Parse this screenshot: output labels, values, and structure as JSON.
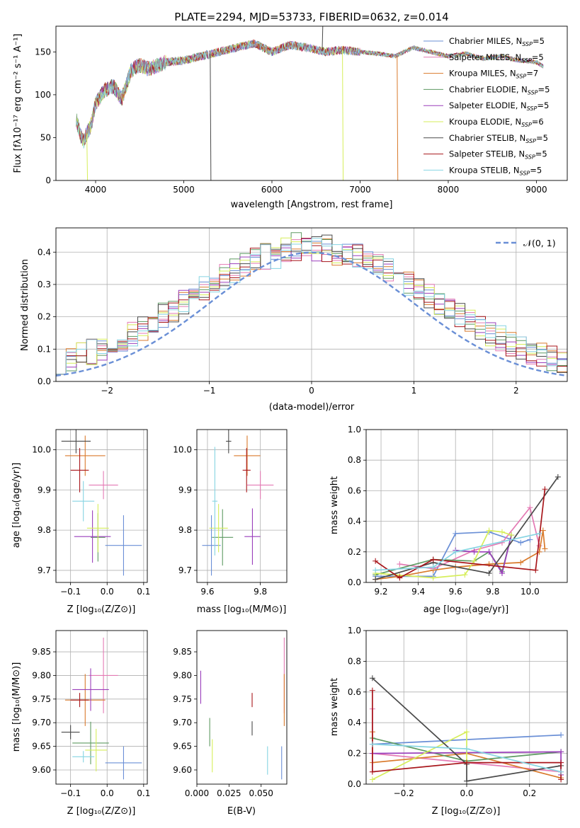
{
  "colors": {
    "chabrier_miles": "#6A8FD6",
    "salpeter_miles": "#E47AB4",
    "kroupa_miles": "#D97A2C",
    "chabrier_elodie": "#5E9A62",
    "salpeter_elodie": "#9A3EBB",
    "kroupa_elodie": "#D6EE5A",
    "chabrier_stelib": "#4A4A4A",
    "salpeter_stelib": "#A8161B",
    "kroupa_stelib": "#86D4E2"
  },
  "chart_data": [
    {
      "id": "spectrum",
      "type": "line",
      "title": "PLATE=2294, MJD=53733, FIBERID=0632, z=0.014",
      "xlabel": "wavelength [Angstrom, rest frame]",
      "ylabel": "Flux [fλ10⁻¹⁷ erg cm⁻² s⁻¹ A⁻¹]",
      "xlim": [
        3550,
        9350
      ],
      "ylim": [
        0,
        180
      ],
      "xticks": [
        "4000",
        "5000",
        "6000",
        "7000",
        "8000",
        "9000"
      ],
      "yticks": [
        "0",
        "50",
        "100",
        "150"
      ],
      "legend": {
        "position": "top-right",
        "entries": [
          "Chabrier MILES, N_SSP=5",
          "Salpeter MILES, N_SSP=5",
          "Kroupa MILES, N_SSP=7",
          "Chabrier ELODIE, N_SSP=5",
          "Salpeter ELODIE, N_SSP=5",
          "Kroupa ELODIE, N_SSP=6",
          "Chabrier STELIB, N_SSP=5",
          "Salpeter STELIB, N_SSP=5",
          "Kroupa STELIB, N_SSP=5"
        ]
      },
      "series": [
        {
          "name": "Kroupa STELIB",
          "color_key": "kroupa_stelib",
          "x": [
            3780,
            3820,
            3860,
            3900,
            3950,
            4000,
            4100,
            4200,
            4300,
            4400,
            4500,
            4600,
            4800,
            5000,
            5200,
            5400,
            5600,
            5800,
            6000,
            6200,
            6400,
            6600,
            6800,
            7000,
            7200,
            7400,
            7600,
            7800,
            8000,
            8200,
            8400,
            8600,
            8800,
            9000,
            9080
          ],
          "y": [
            72,
            55,
            45,
            55,
            65,
            90,
            105,
            110,
            95,
            128,
            135,
            130,
            138,
            140,
            145,
            150,
            155,
            160,
            150,
            158,
            155,
            150,
            152,
            150,
            148,
            145,
            155,
            150,
            145,
            148,
            142,
            145,
            140,
            138,
            133
          ]
        }
      ],
      "drops": [
        {
          "name": "Chabrier STELIB",
          "color_key": "chabrier_stelib",
          "x": 5300,
          "y": 0
        },
        {
          "name": "Kroupa ELODIE",
          "color_key": "kroupa_elodie",
          "x": 6800,
          "y": 0
        },
        {
          "name": "Kroupa MILES",
          "color_key": "kroupa_miles",
          "x": 7420,
          "y": 0
        },
        {
          "name": "Kroupa ELODIE",
          "color_key": "kroupa_elodie",
          "x": 3900,
          "y": 0
        },
        {
          "name": "Chabrier STELIB",
          "color_key": "chabrier_stelib",
          "x": 6570,
          "y": 185
        }
      ]
    },
    {
      "id": "residuals",
      "type": "line",
      "xlabel": "(data-model)/error",
      "ylabel": "Normed distribution",
      "xlim": [
        -2.5,
        2.5
      ],
      "ylim": [
        0,
        0.475
      ],
      "xticks": [
        "−2",
        "−1",
        "0",
        "1",
        "2"
      ],
      "yticks": [
        "0.0",
        "0.1",
        "0.2",
        "0.3",
        "0.4"
      ],
      "grid": true,
      "legend": {
        "position": "top-right",
        "entries": [
          "𝒩(0, 1)"
        ]
      },
      "reference_curve": {
        "name": "𝒩(0, 1)",
        "mean": 0,
        "sigma": 1,
        "style": "dashed"
      }
    },
    {
      "id": "age_vs_Z",
      "type": "scatter",
      "xlabel": "Z [log₁₀(Z/Z⊙)]",
      "ylabel": "age  [log₁₀(age/yr)]",
      "xlim": [
        -0.14,
        0.11
      ],
      "ylim": [
        9.67,
        10.05
      ],
      "xticks": [
        "−0.1",
        "0.0",
        "0.1"
      ],
      "yticks": [
        "9.7",
        "9.8",
        "9.9",
        "10.0"
      ],
      "grid": true,
      "points": [
        {
          "color_key": "chabrier_miles",
          "x": 0.045,
          "xerr": 0.05,
          "y": 9.762,
          "yerr": 0.075
        },
        {
          "color_key": "salpeter_miles",
          "x": -0.01,
          "xerr": 0.04,
          "y": 9.912,
          "yerr": 0.035
        },
        {
          "color_key": "kroupa_miles",
          "x": -0.06,
          "xerr": 0.055,
          "y": 9.985,
          "yerr": 0.05
        },
        {
          "color_key": "chabrier_elodie",
          "x": -0.025,
          "xerr": 0.02,
          "y": 9.782,
          "yerr": 0.06
        },
        {
          "color_key": "salpeter_elodie",
          "x": -0.04,
          "xerr": 0.05,
          "y": 9.784,
          "yerr": 0.065
        },
        {
          "color_key": "kroupa_elodie",
          "x": -0.025,
          "xerr": 0.03,
          "y": 9.805,
          "yerr": 0.06
        },
        {
          "color_key": "chabrier_stelib",
          "x": -0.085,
          "xerr": 0.04,
          "y": 10.021,
          "yerr": 0.03
        },
        {
          "color_key": "salpeter_stelib",
          "x": -0.075,
          "xerr": 0.025,
          "y": 9.949,
          "yerr": 0.055
        },
        {
          "color_key": "kroupa_stelib",
          "x": -0.065,
          "xerr": 0.03,
          "y": 9.872,
          "yerr": 0.05
        }
      ]
    },
    {
      "id": "age_vs_mass",
      "type": "scatter",
      "xlabel": "mass [log₁₀(M/M⊙)]",
      "xlim": [
        9.56,
        9.9
      ],
      "ylim": [
        9.67,
        10.05
      ],
      "xticks": [
        "9.6",
        "9.8"
      ],
      "yticks": [
        "9.7",
        "9.8",
        "9.9",
        "10.0"
      ],
      "grid": true,
      "points": [
        {
          "color_key": "chabrier_miles",
          "x": 9.615,
          "xerr": 0.035,
          "y": 9.762,
          "yerr": 0.075
        },
        {
          "color_key": "salpeter_miles",
          "x": 9.8,
          "xerr": 0.05,
          "y": 9.912,
          "yerr": 0.035
        },
        {
          "color_key": "kroupa_miles",
          "x": 9.75,
          "xerr": 0.05,
          "y": 9.985,
          "yerr": 0.05
        },
        {
          "color_key": "chabrier_elodie",
          "x": 9.657,
          "xerr": 0.04,
          "y": 9.782,
          "yerr": 0.07
        },
        {
          "color_key": "salpeter_elodie",
          "x": 9.77,
          "xerr": 0.03,
          "y": 9.784,
          "yerr": 0.07
        },
        {
          "color_key": "kroupa_elodie",
          "x": 9.642,
          "xerr": 0.035,
          "y": 9.805,
          "yerr": 0.06
        },
        {
          "color_key": "chabrier_stelib",
          "x": 9.68,
          "xerr": 0.01,
          "y": 10.021,
          "yerr": 0.03
        },
        {
          "color_key": "salpeter_stelib",
          "x": 9.748,
          "xerr": 0.015,
          "y": 9.949,
          "yerr": 0.055
        },
        {
          "color_key": "kroupa_stelib",
          "x": 9.628,
          "xerr": 0.01,
          "y": 9.872,
          "yerr": 0.135
        }
      ]
    },
    {
      "id": "mass_weight_vs_age",
      "type": "line",
      "xlabel": "age  [log₁₀(age/yr)]",
      "ylabel": "mass weight",
      "xlim": [
        9.12,
        10.2
      ],
      "ylim": [
        0,
        1.0
      ],
      "xticks": [
        "9.2",
        "9.4",
        "9.6",
        "9.8",
        "10.0"
      ],
      "yticks": [
        "0.0",
        "0.2",
        "0.4",
        "0.6",
        "0.8",
        "1.0"
      ],
      "grid": true,
      "series": [
        {
          "color_key": "chabrier_miles",
          "x": [
            9.17,
            9.48,
            9.6,
            9.78,
            9.95,
            10.0
          ],
          "y": [
            0.04,
            0.04,
            0.32,
            0.33,
            0.26,
            0.28
          ]
        },
        {
          "color_key": "salpeter_miles",
          "x": [
            9.3,
            9.48,
            9.7,
            9.85,
            10.0,
            10.05
          ],
          "y": [
            0.12,
            0.09,
            0.21,
            0.26,
            0.49,
            0.24
          ]
        },
        {
          "color_key": "kroupa_miles",
          "x": [
            9.17,
            9.3,
            9.48,
            9.6,
            9.78,
            9.95,
            10.05,
            10.07,
            10.08
          ],
          "y": [
            0.02,
            0.04,
            0.08,
            0.1,
            0.12,
            0.13,
            0.2,
            0.34,
            0.22
          ]
        },
        {
          "color_key": "chabrier_elodie",
          "x": [
            9.17,
            9.48,
            9.7,
            9.78,
            9.85,
            9.9
          ],
          "y": [
            0.05,
            0.15,
            0.14,
            0.2,
            0.07,
            0.31
          ]
        },
        {
          "color_key": "salpeter_elodie",
          "x": [
            9.6,
            9.7,
            9.78,
            9.85,
            9.9
          ],
          "y": [
            0.21,
            0.2,
            0.2,
            0.06,
            0.31
          ]
        },
        {
          "color_key": "kroupa_elodie",
          "x": [
            9.17,
            9.48,
            9.65,
            9.7,
            9.78,
            9.85,
            9.9
          ],
          "y": [
            0.06,
            0.03,
            0.05,
            0.14,
            0.34,
            0.33,
            0.31
          ]
        },
        {
          "color_key": "chabrier_stelib",
          "x": [
            9.17,
            9.48,
            9.78,
            10.15
          ],
          "y": [
            0.02,
            0.13,
            0.06,
            0.69
          ]
        },
        {
          "color_key": "salpeter_stelib",
          "x": [
            9.17,
            9.3,
            9.48,
            10.03,
            10.08
          ],
          "y": [
            0.14,
            0.03,
            0.15,
            0.08,
            0.61
          ]
        },
        {
          "color_key": "kroupa_stelib",
          "x": [
            9.17,
            9.48,
            9.6,
            10.05
          ],
          "y": [
            0.08,
            0.1,
            0.2,
            0.32
          ]
        }
      ]
    },
    {
      "id": "mass_vs_Z",
      "type": "scatter",
      "xlabel": "Z [log₁₀(Z/Z⊙)]",
      "ylabel": "mass [log₁₀(M/M⊙)]",
      "xlim": [
        -0.14,
        0.11
      ],
      "ylim": [
        9.57,
        9.895
      ],
      "xticks": [
        "−0.1",
        "0.0",
        "0.1"
      ],
      "yticks": [
        "9.60",
        "9.65",
        "9.70",
        "9.75",
        "9.80",
        "9.85"
      ],
      "grid": true,
      "points": [
        {
          "color_key": "chabrier_miles",
          "x": 0.045,
          "xerr": 0.05,
          "y": 9.615,
          "yerr": 0.035
        },
        {
          "color_key": "salpeter_miles",
          "x": -0.01,
          "xerr": 0.04,
          "y": 9.8,
          "yerr": 0.08
        },
        {
          "color_key": "kroupa_miles",
          "x": -0.06,
          "xerr": 0.055,
          "y": 9.748,
          "yerr": 0.055
        },
        {
          "color_key": "chabrier_elodie",
          "x": -0.045,
          "xerr": 0.05,
          "y": 9.657,
          "yerr": 0.045
        },
        {
          "color_key": "salpeter_elodie",
          "x": -0.045,
          "xerr": 0.05,
          "y": 9.77,
          "yerr": 0.045
        },
        {
          "color_key": "kroupa_elodie",
          "x": -0.03,
          "xerr": 0.03,
          "y": 9.642,
          "yerr": 0.045
        },
        {
          "color_key": "chabrier_stelib",
          "x": -0.1,
          "xerr": 0.025,
          "y": 9.68,
          "yerr": 0.015
        },
        {
          "color_key": "salpeter_stelib",
          "x": -0.075,
          "xerr": 0.025,
          "y": 9.748,
          "yerr": 0.015
        },
        {
          "color_key": "kroupa_stelib",
          "x": -0.065,
          "xerr": 0.03,
          "y": 9.628,
          "yerr": 0.012
        }
      ]
    },
    {
      "id": "mass_vs_EBV",
      "type": "scatter",
      "xlabel": "E(B-V)",
      "xlim": [
        0.0,
        0.07
      ],
      "ylim": [
        9.57,
        9.895
      ],
      "xticks": [
        "0.000",
        "0.025",
        "0.050"
      ],
      "yticks": [
        "9.60",
        "9.65",
        "9.70",
        "9.75",
        "9.80",
        "9.85"
      ],
      "grid": false,
      "points": [
        {
          "color_key": "chabrier_miles",
          "x": 0.066,
          "xerr": 0,
          "y": 9.615,
          "yerr": 0.035
        },
        {
          "color_key": "salpeter_miles",
          "x": 0.068,
          "xerr": 0,
          "y": 9.8,
          "yerr": 0.08
        },
        {
          "color_key": "kroupa_miles",
          "x": 0.068,
          "xerr": 0,
          "y": 9.748,
          "yerr": 0.055
        },
        {
          "color_key": "chabrier_elodie",
          "x": 0.01,
          "xerr": 0,
          "y": 9.68,
          "yerr": 0.03
        },
        {
          "color_key": "salpeter_elodie",
          "x": 0.003,
          "xerr": 0,
          "y": 9.775,
          "yerr": 0.035
        },
        {
          "color_key": "kroupa_elodie",
          "x": 0.012,
          "xerr": 0,
          "y": 9.63,
          "yerr": 0.035
        },
        {
          "color_key": "chabrier_stelib",
          "x": 0.043,
          "xerr": 0,
          "y": 9.688,
          "yerr": 0.015
        },
        {
          "color_key": "salpeter_stelib",
          "x": 0.043,
          "xerr": 0,
          "y": 9.748,
          "yerr": 0.015
        },
        {
          "color_key": "kroupa_stelib",
          "x": 0.055,
          "xerr": 0,
          "y": 9.62,
          "yerr": 0.03
        }
      ]
    },
    {
      "id": "mass_weight_vs_Z",
      "type": "line",
      "xlabel": "Z [log₁₀(Z/Z⊙)]",
      "ylabel": "mass weight",
      "xlim": [
        -0.32,
        0.32
      ],
      "ylim": [
        0,
        1.0
      ],
      "xticks": [
        "−0.2",
        "0.0",
        "0.2"
      ],
      "yticks": [
        "0.0",
        "0.2",
        "0.4",
        "0.6",
        "0.8",
        "1.0"
      ],
      "grid": true,
      "series": [
        {
          "color_key": "chabrier_miles",
          "x": [
            -0.3,
            0.3
          ],
          "y": [
            0.26,
            0.32
          ]
        },
        {
          "color_key": "salpeter_miles",
          "x": [
            -0.3,
            -0.3,
            0.3,
            0.3
          ],
          "y": [
            0.49,
            0.2,
            0.08,
            0.14
          ]
        },
        {
          "color_key": "kroupa_miles",
          "x": [
            -0.3,
            -0.3,
            0.0,
            0.3
          ],
          "y": [
            0.34,
            0.14,
            0.2,
            0.04
          ]
        },
        {
          "color_key": "chabrier_elodie",
          "x": [
            -0.3,
            0.0,
            0.3
          ],
          "y": [
            0.3,
            0.15,
            0.21
          ]
        },
        {
          "color_key": "salpeter_elodie",
          "x": [
            -0.3,
            0.3,
            0.3
          ],
          "y": [
            0.2,
            0.21,
            0.06
          ]
        },
        {
          "color_key": "kroupa_elodie",
          "x": [
            -0.3,
            0.0,
            0.0
          ],
          "y": [
            0.03,
            0.34,
            0.14
          ]
        },
        {
          "color_key": "chabrier_stelib",
          "x": [
            -0.3,
            0.0,
            0.0,
            0.3
          ],
          "y": [
            0.69,
            0.13,
            0.02,
            0.12
          ]
        },
        {
          "color_key": "salpeter_stelib",
          "x": [
            -0.3,
            -0.3,
            0.0,
            0.3,
            0.3
          ],
          "y": [
            0.61,
            0.08,
            0.14,
            0.14,
            0.03
          ]
        },
        {
          "color_key": "kroupa_stelib",
          "x": [
            -0.3,
            0.0,
            0.3
          ],
          "y": [
            0.26,
            0.23,
            0.08
          ]
        }
      ]
    }
  ]
}
